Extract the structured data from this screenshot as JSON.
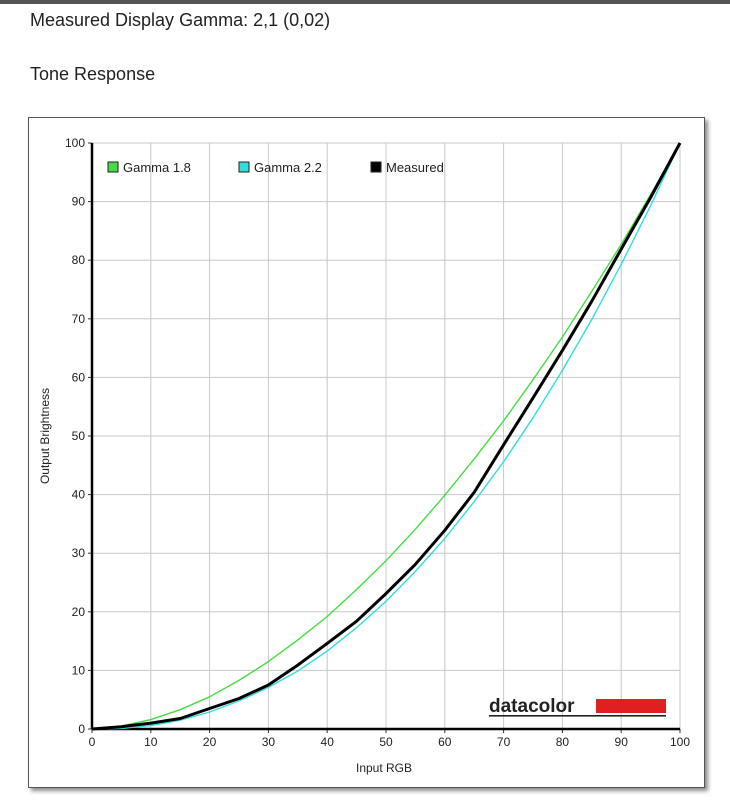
{
  "header": {
    "measured_gamma": "Measured Display Gamma: 2,1 (0,02)",
    "section_title": "Tone Response"
  },
  "chart_data": {
    "type": "line",
    "title": "",
    "xlabel": "Input RGB",
    "ylabel": "Output Brightness",
    "xlim": [
      0,
      100
    ],
    "ylim": [
      0,
      100
    ],
    "xticks": [
      0,
      10,
      20,
      30,
      40,
      50,
      60,
      70,
      80,
      90,
      100
    ],
    "yticks": [
      0,
      10,
      20,
      30,
      40,
      50,
      60,
      70,
      80,
      90,
      100
    ],
    "grid": true,
    "legend_position": "top-left",
    "series": [
      {
        "name": "Gamma 1.8",
        "color": "#44dd44",
        "x": [
          0,
          5,
          10,
          15,
          20,
          25,
          30,
          35,
          40,
          45,
          50,
          55,
          60,
          65,
          70,
          75,
          80,
          85,
          90,
          95,
          100
        ],
        "y": [
          0,
          0.5,
          1.6,
          3.3,
          5.5,
          8.3,
          11.5,
          15.2,
          19.2,
          23.8,
          28.7,
          34.1,
          39.9,
          46.1,
          52.6,
          59.6,
          66.9,
          74.7,
          82.7,
          91.2,
          100
        ]
      },
      {
        "name": "Gamma 2.2",
        "color": "#33dddd",
        "x": [
          0,
          5,
          10,
          15,
          20,
          25,
          30,
          35,
          40,
          45,
          50,
          55,
          60,
          65,
          70,
          75,
          80,
          85,
          90,
          95,
          100
        ],
        "y": [
          0,
          0.1,
          0.6,
          1.5,
          2.9,
          4.8,
          7.1,
          9.9,
          13.3,
          17.3,
          21.8,
          26.9,
          32.5,
          38.8,
          45.6,
          53.1,
          61.2,
          69.9,
          79.3,
          89.3,
          100
        ]
      },
      {
        "name": "Measured",
        "color": "#000000",
        "x": [
          0,
          5,
          10,
          15,
          20,
          25,
          30,
          35,
          40,
          45,
          50,
          55,
          60,
          65,
          70,
          75,
          80,
          85,
          90,
          95,
          100
        ],
        "y": [
          0,
          0.4,
          1.0,
          1.8,
          3.5,
          5.2,
          7.5,
          10.9,
          14.6,
          18.4,
          23.1,
          28.1,
          33.9,
          40.4,
          48.5,
          56.5,
          64.6,
          73.0,
          81.9,
          90.7,
          100
        ]
      }
    ]
  },
  "branding": {
    "logo_text": "datacolor",
    "logo_accent_color": "#e02020"
  }
}
